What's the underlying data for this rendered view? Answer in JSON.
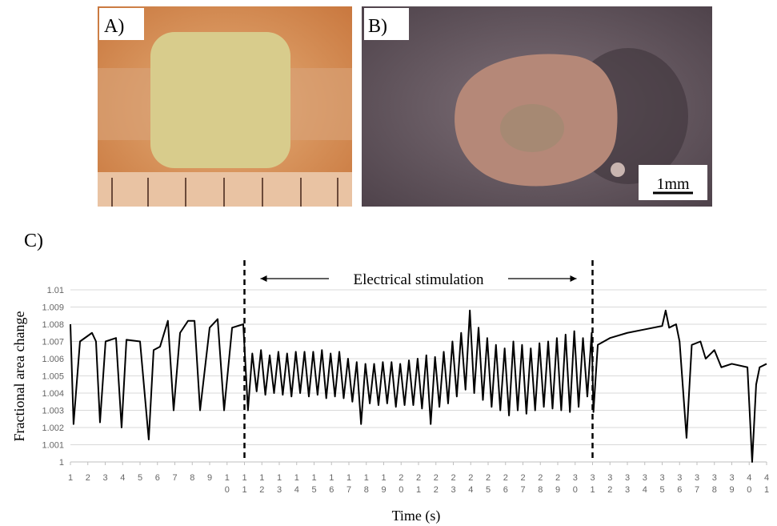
{
  "panels": {
    "a_label": "A)",
    "b_label": "B)",
    "scale_bar": "1mm",
    "c_label": "C)"
  },
  "chart_data": {
    "type": "line",
    "y_label": "Fractional area change",
    "x_label": "Time (s)",
    "annotation": {
      "text": "Electrical stimulation",
      "x_start": 11,
      "x_end": 31
    },
    "xlim": [
      1,
      41
    ],
    "xticks": [
      1,
      2,
      3,
      4,
      5,
      6,
      7,
      8,
      9,
      10,
      11,
      12,
      13,
      14,
      15,
      16,
      17,
      18,
      19,
      20,
      21,
      22,
      23,
      24,
      25,
      26,
      27,
      28,
      29,
      30,
      31,
      32,
      33,
      34,
      35,
      36,
      37,
      38,
      39,
      40,
      41
    ],
    "ylim": [
      1,
      1.01
    ],
    "yticks": [
      1,
      1.001,
      1.002,
      1.003,
      1.004,
      1.005,
      1.006,
      1.007,
      1.008,
      1.009,
      1.01
    ],
    "grid": true,
    "series": [
      {
        "color": "#000000",
        "x": [
          1,
          1.18,
          1.55,
          2.24,
          2.47,
          2.7,
          3.02,
          3.62,
          3.94,
          4.22,
          5.0,
          5.5,
          5.78,
          6.15,
          6.6,
          6.93,
          7.3,
          7.76,
          8.13,
          8.45,
          9.0,
          9.46,
          9.83,
          10.29,
          10.93,
          11.2,
          11.45,
          11.7,
          11.95,
          12.2,
          12.45,
          12.7,
          12.95,
          13.2,
          13.45,
          13.7,
          13.95,
          14.2,
          14.45,
          14.7,
          14.95,
          15.2,
          15.45,
          15.7,
          15.95,
          16.2,
          16.45,
          16.7,
          16.95,
          17.2,
          17.45,
          17.7,
          17.95,
          18.2,
          18.45,
          18.7,
          18.95,
          19.2,
          19.45,
          19.7,
          19.95,
          20.2,
          20.45,
          20.7,
          20.95,
          21.2,
          21.45,
          21.7,
          21.95,
          22.2,
          22.45,
          22.7,
          22.95,
          23.2,
          23.45,
          23.7,
          23.95,
          24.2,
          24.45,
          24.7,
          24.95,
          25.2,
          25.45,
          25.7,
          25.95,
          26.2,
          26.45,
          26.7,
          26.95,
          27.2,
          27.45,
          27.7,
          27.95,
          28.2,
          28.45,
          28.7,
          28.95,
          29.2,
          29.45,
          29.7,
          29.95,
          30.2,
          30.45,
          30.7,
          30.95,
          31.05,
          31.3,
          32,
          33,
          34,
          35,
          35.2,
          35.4,
          35.8,
          36.0,
          36.4,
          36.7,
          37.2,
          37.5,
          38,
          38.4,
          39,
          39.9,
          40.17,
          40.4,
          40.6,
          41
        ],
        "values": [
          1.008,
          1.0022,
          1.007,
          1.0075,
          1.007,
          1.0023,
          1.007,
          1.0072,
          1.002,
          1.0071,
          1.007,
          1.0013,
          1.0065,
          1.0067,
          1.0082,
          1.003,
          1.0075,
          1.0082,
          1.0082,
          1.003,
          1.0078,
          1.0083,
          1.003,
          1.0078,
          1.008,
          1.003,
          1.0063,
          1.0041,
          1.0065,
          1.0039,
          1.0062,
          1.004,
          1.0064,
          1.0039,
          1.0063,
          1.0038,
          1.0064,
          1.004,
          1.0064,
          1.0038,
          1.0064,
          1.0039,
          1.0065,
          1.0037,
          1.0063,
          1.0038,
          1.0064,
          1.0037,
          1.006,
          1.0035,
          1.0058,
          1.0022,
          1.0057,
          1.0034,
          1.0057,
          1.0033,
          1.0058,
          1.0034,
          1.0058,
          1.0032,
          1.0057,
          1.0033,
          1.0059,
          1.0033,
          1.006,
          1.0031,
          1.0062,
          1.0022,
          1.0061,
          1.0032,
          1.0064,
          1.0034,
          1.007,
          1.0038,
          1.0075,
          1.0042,
          1.0088,
          1.004,
          1.0078,
          1.0036,
          1.0072,
          1.0032,
          1.0068,
          1.003,
          1.0066,
          1.0027,
          1.007,
          1.003,
          1.0068,
          1.0028,
          1.0066,
          1.003,
          1.0069,
          1.0032,
          1.007,
          1.0031,
          1.0072,
          1.003,
          1.0074,
          1.0029,
          1.0076,
          1.0032,
          1.0072,
          1.0038,
          1.0075,
          1.0029,
          1.0068,
          1.0072,
          1.0075,
          1.0077,
          1.0079,
          1.0088,
          1.0078,
          1.008,
          1.007,
          1.0014,
          1.0068,
          1.007,
          1.006,
          1.0065,
          1.0055,
          1.0057,
          1.0055,
          1.0,
          1.0045,
          1.0055,
          1.0057
        ]
      }
    ]
  }
}
